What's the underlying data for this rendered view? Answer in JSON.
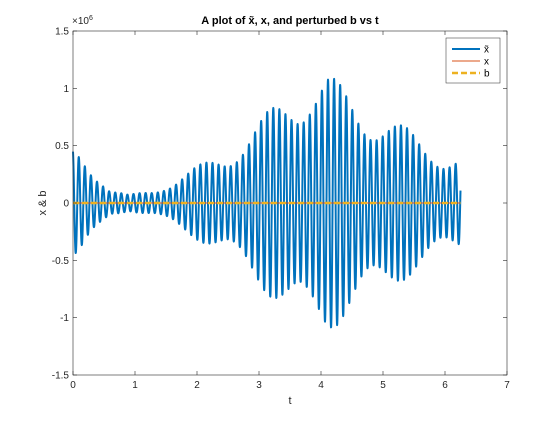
{
  "chart_data": {
    "type": "line",
    "title": "A plot of x̃, x, and perturbed b vs t",
    "xlabel": "t",
    "ylabel": "x & b",
    "xlim": [
      0,
      7
    ],
    "ylim": [
      -1.5,
      1.5
    ],
    "y_exponent_label": "×10",
    "y_exponent_power": "6",
    "y_scale": 1000000,
    "x_ticks": [
      0,
      1,
      2,
      3,
      4,
      5,
      6,
      7
    ],
    "x_tick_labels": [
      "0",
      "1",
      "2",
      "3",
      "4",
      "5",
      "6",
      "7"
    ],
    "y_ticks": [
      -1.5,
      -1,
      -0.5,
      0,
      0.5,
      1,
      1.5
    ],
    "y_tick_labels": [
      "-1.5",
      "-1",
      "-0.5",
      "0",
      "0.5",
      "1",
      "1.5"
    ],
    "grid": false,
    "legend_position": "top-right",
    "series": [
      {
        "name": "x̃",
        "color": "#0072BD",
        "style": "oscillating",
        "x_start": 0,
        "x_end": 6.25,
        "cycles_per_unit": 10.2,
        "envelope": {
          "t": [
            0,
            0.15,
            0.35,
            0.6,
            0.9,
            1.3,
            1.6,
            2.0,
            2.5,
            3.0,
            3.5,
            3.8,
            4.1,
            4.4,
            4.8,
            5.2,
            5.6,
            6.0,
            6.25
          ],
          "amplitude": [
            520000,
            480000,
            320000,
            120000,
            70000,
            120000,
            200000,
            320000,
            480000,
            720000,
            1000000,
            1130000,
            1140000,
            1000000,
            860000,
            720000,
            580000,
            450000,
            420000
          ]
        }
      },
      {
        "name": "x",
        "color": "#D95319",
        "style": "flat",
        "x_start": 0,
        "x_end": 6.25,
        "value": 0
      },
      {
        "name": "b",
        "color": "#EDB120",
        "style": "flat",
        "x_start": 0,
        "x_end": 6.25,
        "value": 0
      }
    ]
  }
}
